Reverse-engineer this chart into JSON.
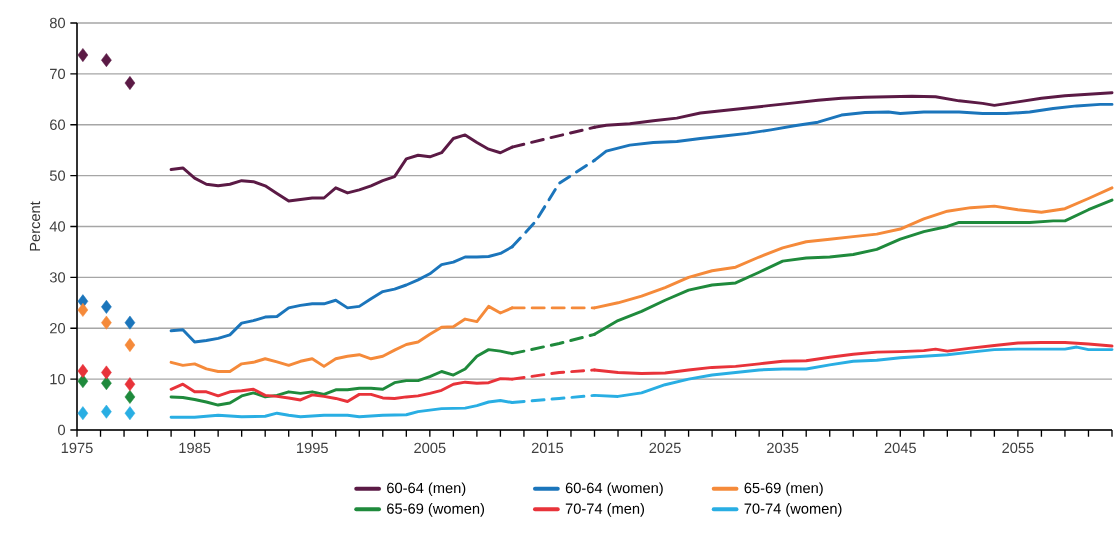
{
  "chart_data": {
    "type": "line",
    "ylabel": "Percent",
    "xlim": [
      1975,
      2063
    ],
    "ylim": [
      0,
      80
    ],
    "xticks": [
      1975,
      {
        "value": 1977,
        "label": null
      },
      {
        "value": 1979,
        "label": null
      },
      {
        "value": 1981,
        "label": null
      },
      {
        "value": 1983,
        "label": null
      },
      1985,
      {
        "value": 1987,
        "label": null
      },
      {
        "value": 1989,
        "label": null
      },
      {
        "value": 1991,
        "label": null
      },
      {
        "value": 1993,
        "label": null
      },
      1995,
      {
        "value": 1997,
        "label": null
      },
      {
        "value": 1999,
        "label": null
      },
      {
        "value": 2001,
        "label": null
      },
      {
        "value": 2003,
        "label": null
      },
      2005,
      {
        "value": 2007,
        "label": null
      },
      {
        "value": 2009,
        "label": null
      },
      {
        "value": 2011,
        "label": null
      },
      {
        "value": 2013,
        "label": null
      },
      2015,
      {
        "value": 2017,
        "label": null
      },
      {
        "value": 2019,
        "label": null
      },
      {
        "value": 2021,
        "label": null
      },
      {
        "value": 2023,
        "label": null
      },
      2025,
      {
        "value": 2027,
        "label": null
      },
      {
        "value": 2029,
        "label": null
      },
      {
        "value": 2031,
        "label": null
      },
      {
        "value": 2033,
        "label": null
      },
      2035,
      {
        "value": 2037,
        "label": null
      },
      {
        "value": 2039,
        "label": null
      },
      {
        "value": 2041,
        "label": null
      },
      {
        "value": 2043,
        "label": null
      },
      2045,
      {
        "value": 2047,
        "label": null
      },
      {
        "value": 2049,
        "label": null
      },
      {
        "value": 2051,
        "label": null
      },
      {
        "value": 2053,
        "label": null
      },
      2055,
      {
        "value": 2057,
        "label": null
      },
      {
        "value": 2059,
        "label": null
      },
      {
        "value": 2061,
        "label": null
      },
      {
        "value": 2063,
        "label": null
      }
    ],
    "yticks": [
      0,
      10,
      20,
      30,
      40,
      50,
      60,
      70,
      80
    ],
    "grid": "y",
    "legend": "bottom",
    "series": [
      {
        "name": "60-64 (men)",
        "color": "#5b1a45",
        "line_style": "solid",
        "x": [
          1983,
          1984,
          1985,
          1986,
          1987,
          1988,
          1989,
          1990,
          1991,
          1992,
          1993,
          1994,
          1995,
          1996,
          1997,
          1998,
          1999,
          2000,
          2001,
          2002,
          2003,
          2004,
          2005,
          2006,
          2007,
          2008,
          2009,
          2010,
          2011,
          2012
        ],
        "values": [
          51.2,
          51.5,
          49.5,
          48.3,
          48,
          48.3,
          49,
          48.8,
          48,
          46.5,
          45,
          45.3,
          45.6,
          45.6,
          47.6,
          46.6,
          47.2,
          48,
          49,
          49.8,
          53.3,
          54,
          53.7,
          54.5,
          57.3,
          58,
          56.5,
          55.2,
          54.5,
          55.6
        ]
      },
      {
        "name": "60-64 (women)",
        "color": "#1b75bb",
        "line_style": "solid",
        "x": [
          1983,
          1984,
          1985,
          1986,
          1987,
          1988,
          1989,
          1990,
          1991,
          1992,
          1993,
          1994,
          1995,
          1996,
          1997,
          1998,
          1999,
          2000,
          2001,
          2002,
          2003,
          2004,
          2005,
          2006,
          2007,
          2008,
          2009,
          2010,
          2011,
          2012
        ],
        "values": [
          19.5,
          19.7,
          17.3,
          17.6,
          18,
          18.7,
          21,
          21.5,
          22.2,
          22.3,
          24,
          24.5,
          24.8,
          24.8,
          25.5,
          24,
          24.3,
          25.8,
          27.2,
          27.7,
          28.5,
          29.5,
          30.7,
          32.5,
          33,
          34,
          34,
          34.1,
          34.7,
          36
        ]
      },
      {
        "name": "65-69 (men)",
        "color": "#f58a3a",
        "line_style": "solid",
        "x": [
          1983,
          1984,
          1985,
          1986,
          1987,
          1988,
          1989,
          1990,
          1991,
          1992,
          1993,
          1994,
          1995,
          1996,
          1997,
          1998,
          1999,
          2000,
          2001,
          2002,
          2003,
          2004,
          2005,
          2006,
          2007,
          2008,
          2009,
          2010,
          2011,
          2012
        ],
        "values": [
          13.3,
          12.7,
          13,
          12,
          11.5,
          11.5,
          13,
          13.3,
          14,
          13.4,
          12.7,
          13.5,
          14,
          12.5,
          14,
          14.5,
          14.8,
          14,
          14.5,
          15.7,
          16.8,
          17.3,
          18.8,
          20.2,
          20.3,
          21.8,
          21.3,
          24.3,
          23,
          24
        ]
      },
      {
        "name": "65-69 (women)",
        "color": "#1f8a3c",
        "line_style": "solid",
        "x": [
          1983,
          1984,
          1985,
          1986,
          1987,
          1988,
          1989,
          1990,
          1991,
          1992,
          1993,
          1994,
          1995,
          1996,
          1997,
          1998,
          1999,
          2000,
          2001,
          2002,
          2003,
          2004,
          2005,
          2006,
          2007,
          2008,
          2009,
          2010,
          2011,
          2012
        ],
        "values": [
          6.5,
          6.4,
          6,
          5.5,
          4.9,
          5.3,
          6.7,
          7.3,
          6.5,
          6.8,
          7.5,
          7.2,
          7.5,
          7,
          7.9,
          7.9,
          8.2,
          8.2,
          8,
          9.3,
          9.7,
          9.7,
          10.5,
          11.5,
          10.8,
          12,
          14.5,
          15.8,
          15.5,
          15
        ]
      },
      {
        "name": "70-74 (men)",
        "color": "#e8333a",
        "line_style": "solid",
        "x": [
          1983,
          1984,
          1985,
          1986,
          1987,
          1988,
          1989,
          1990,
          1991,
          1992,
          1993,
          1994,
          1995,
          1996,
          1997,
          1998,
          1999,
          2000,
          2001,
          2002,
          2003,
          2004,
          2005,
          2006,
          2007,
          2008,
          2009,
          2010,
          2011,
          2012
        ],
        "values": [
          8,
          9,
          7.5,
          7.5,
          6.7,
          7.5,
          7.7,
          8,
          6.8,
          6.6,
          6.3,
          5.9,
          6.9,
          6.6,
          6.2,
          5.6,
          7,
          7,
          6.3,
          6.2,
          6.5,
          6.7,
          7.2,
          7.8,
          9,
          9.4,
          9.2,
          9.3,
          10.1,
          10
        ]
      },
      {
        "name": "70-74 (women)",
        "color": "#29aee3",
        "line_style": "solid",
        "x": [
          1983,
          1985,
          1987,
          1989,
          1991,
          1992,
          1993,
          1994,
          1996,
          1998,
          1999,
          2001,
          2003,
          2004,
          2006,
          2008,
          2009,
          2010,
          2011,
          2012
        ],
        "values": [
          2.5,
          2.5,
          2.9,
          2.6,
          2.7,
          3.3,
          2.9,
          2.6,
          2.9,
          2.9,
          2.6,
          2.9,
          3,
          3.6,
          4.2,
          4.3,
          4.8,
          5.5,
          5.8,
          5.4
        ]
      },
      {
        "color": "#5b1a45",
        "line_style": "dashed",
        "x": [
          2012,
          2015,
          2019
        ],
        "values": [
          55.6,
          57.3,
          59.5
        ]
      },
      {
        "color": "#1b75bb",
        "line_style": "dashed",
        "x": [
          2012,
          2014,
          2016,
          2019
        ],
        "values": [
          36,
          41,
          48.5,
          53
        ]
      },
      {
        "color": "#f58a3a",
        "line_style": "dashed",
        "x": [
          2012,
          2019
        ],
        "values": [
          24,
          24
        ]
      },
      {
        "color": "#1f8a3c",
        "line_style": "dashed",
        "x": [
          2012,
          2016,
          2019
        ],
        "values": [
          15,
          17,
          18.8
        ]
      },
      {
        "color": "#e8333a",
        "line_style": "dashed",
        "x": [
          2012,
          2016,
          2019
        ],
        "values": [
          10,
          11.3,
          11.8
        ]
      },
      {
        "color": "#29aee3",
        "line_style": "dashed",
        "x": [
          2012,
          2016,
          2019
        ],
        "values": [
          5.4,
          6.2,
          6.8
        ]
      },
      {
        "color": "#5b1a45",
        "line_style": "solid",
        "x": [
          2019,
          2020,
          2022,
          2024,
          2026,
          2028,
          2030,
          2032,
          2034,
          2036,
          2038,
          2040,
          2042,
          2044,
          2046,
          2048,
          2050,
          2052,
          2053,
          2055,
          2057,
          2059,
          2061,
          2063
        ],
        "values": [
          59.5,
          59.9,
          60.2,
          60.8,
          61.3,
          62.3,
          62.8,
          63.3,
          63.8,
          64.3,
          64.8,
          65.2,
          65.4,
          65.5,
          65.6,
          65.5,
          64.7,
          64.2,
          63.8,
          64.5,
          65.2,
          65.7,
          66,
          66.3
        ]
      },
      {
        "color": "#1b75bb",
        "line_style": "solid",
        "x": [
          2019,
          2020,
          2022,
          2024,
          2026,
          2028,
          2030,
          2032,
          2034,
          2036,
          2038,
          2040,
          2042,
          2044,
          2045,
          2047,
          2050,
          2052,
          2054,
          2056,
          2058,
          2060,
          2062,
          2063
        ],
        "values": [
          53,
          54.8,
          56,
          56.5,
          56.7,
          57.3,
          57.8,
          58.3,
          59,
          59.8,
          60.5,
          61.9,
          62.4,
          62.5,
          62.2,
          62.5,
          62.5,
          62.2,
          62.2,
          62.5,
          63.2,
          63.7,
          64,
          64
        ]
      },
      {
        "color": "#f58a3a",
        "line_style": "solid",
        "x": [
          2019,
          2021,
          2023,
          2025,
          2027,
          2029,
          2031,
          2033,
          2035,
          2037,
          2039,
          2041,
          2043,
          2045,
          2047,
          2049,
          2051,
          2053,
          2055,
          2057,
          2059,
          2061,
          2063
        ],
        "values": [
          24,
          25,
          26.3,
          28,
          30,
          31.3,
          32,
          34,
          35.8,
          37,
          37.5,
          38,
          38.5,
          39.5,
          41.5,
          43,
          43.7,
          44,
          43.3,
          42.8,
          43.5,
          45.5,
          47.6
        ]
      },
      {
        "color": "#1f8a3c",
        "line_style": "solid",
        "x": [
          2019,
          2021,
          2023,
          2025,
          2027,
          2029,
          2031,
          2033,
          2035,
          2037,
          2039,
          2041,
          2043,
          2045,
          2047,
          2049,
          2050,
          2052,
          2054,
          2056,
          2058,
          2059,
          2061,
          2063
        ],
        "values": [
          18.8,
          21.5,
          23.3,
          25.5,
          27.5,
          28.5,
          28.9,
          31,
          33.2,
          33.8,
          34,
          34.5,
          35.5,
          37.5,
          39,
          40,
          40.8,
          40.8,
          40.8,
          40.8,
          41.1,
          41.1,
          43.3,
          45.2
        ]
      },
      {
        "color": "#e8333a",
        "line_style": "solid",
        "x": [
          2019,
          2021,
          2023,
          2025,
          2027,
          2029,
          2031,
          2033,
          2035,
          2037,
          2039,
          2041,
          2043,
          2045,
          2047,
          2048,
          2049,
          2051,
          2053,
          2055,
          2057,
          2059,
          2061,
          2063
        ],
        "values": [
          11.8,
          11.3,
          11.1,
          11.2,
          11.8,
          12.3,
          12.5,
          13,
          13.5,
          13.6,
          14.3,
          14.9,
          15.3,
          15.4,
          15.6,
          15.9,
          15.5,
          16.1,
          16.6,
          17.1,
          17.2,
          17.2,
          16.9,
          16.5
        ]
      },
      {
        "color": "#29aee3",
        "line_style": "solid",
        "x": [
          2019,
          2021,
          2023,
          2025,
          2027,
          2029,
          2031,
          2033,
          2035,
          2037,
          2039,
          2041,
          2043,
          2045,
          2047,
          2049,
          2051,
          2053,
          2055,
          2057,
          2059,
          2060,
          2061,
          2063
        ],
        "values": [
          6.8,
          6.6,
          7.3,
          8.9,
          10,
          10.8,
          11.3,
          11.8,
          12,
          12,
          12.8,
          13.5,
          13.7,
          14.2,
          14.5,
          14.8,
          15.3,
          15.8,
          15.9,
          15.9,
          15.9,
          16.3,
          15.8,
          15.8
        ]
      },
      {
        "type": "scatter",
        "marker": "diamond",
        "color": "#5b1a45",
        "x": [
          1975.5,
          1977.5,
          1979.5
        ],
        "values": [
          73.7,
          72.7,
          68.2
        ]
      },
      {
        "type": "scatter",
        "marker": "diamond",
        "color": "#1b75bb",
        "x": [
          1975.5,
          1977.5,
          1979.5
        ],
        "values": [
          25.3,
          24.2,
          21.1
        ]
      },
      {
        "type": "scatter",
        "marker": "diamond",
        "color": "#f58a3a",
        "x": [
          1975.5,
          1977.5,
          1979.5
        ],
        "values": [
          23.6,
          21.1,
          16.7
        ]
      },
      {
        "type": "scatter",
        "marker": "diamond",
        "color": "#1f8a3c",
        "x": [
          1975.5,
          1977.5,
          1979.5
        ],
        "values": [
          9.6,
          9.2,
          6.5
        ]
      },
      {
        "type": "scatter",
        "marker": "diamond",
        "color": "#e8333a",
        "x": [
          1975.5,
          1977.5,
          1979.5
        ],
        "values": [
          11.6,
          11.3,
          9
        ]
      },
      {
        "type": "scatter",
        "marker": "diamond",
        "color": "#29aee3",
        "x": [
          1975.5,
          1977.5,
          1979.5
        ],
        "values": [
          3.3,
          3.6,
          3.3
        ]
      }
    ]
  }
}
